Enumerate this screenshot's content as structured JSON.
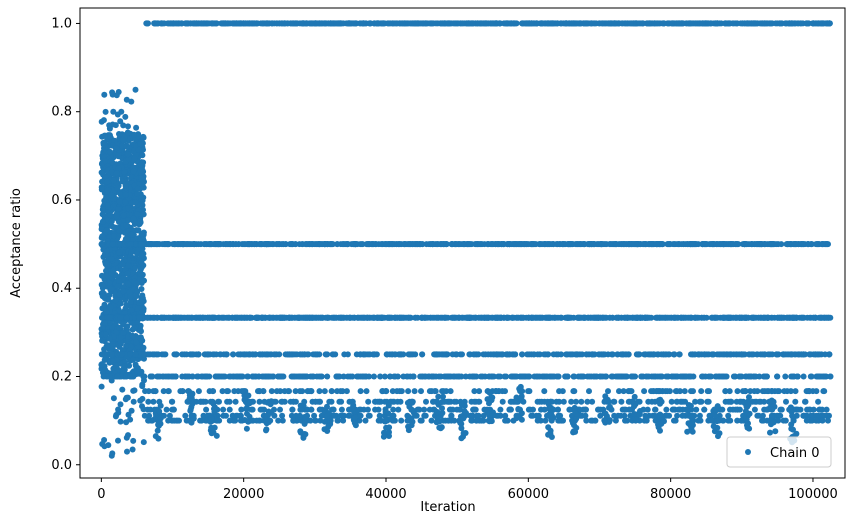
{
  "chart_data": {
    "type": "scatter",
    "xlabel": "Iteration",
    "ylabel": "Acceptance ratio",
    "xlim": [
      -3000,
      104500
    ],
    "ylim": [
      -0.03,
      1.035
    ],
    "grid": false,
    "legend": {
      "placement": "lower-right",
      "entries": [
        "Chain 0"
      ]
    },
    "x_ticks": [
      0,
      20000,
      40000,
      60000,
      80000,
      100000
    ],
    "x_tick_labels": [
      "0",
      "20000",
      "40000",
      "60000",
      "80000",
      "100000"
    ],
    "y_ticks": [
      0.0,
      0.2,
      0.4,
      0.6,
      0.8,
      1.0
    ],
    "y_tick_labels": [
      "0.0",
      "0.2",
      "0.4",
      "0.6",
      "0.8",
      "1.0"
    ],
    "series": [
      {
        "name": "Chain 0",
        "color": "#1f77b4",
        "marker": "circle",
        "description_of_structure": {
          "burn_in_range": [
            0,
            6000
          ],
          "burn_in_value_range": [
            0.02,
            0.85
          ],
          "levels": [
            {
              "y": 1.0,
              "x_range": [
                6000,
                102500
              ]
            },
            {
              "y": 0.5,
              "x_range": [
                0,
                102500
              ]
            },
            {
              "y": 0.333,
              "x_range": [
                0,
                102500
              ]
            },
            {
              "y": 0.25,
              "x_range": [
                0,
                102500
              ]
            },
            {
              "y": 0.2,
              "x_range": [
                0,
                102500
              ]
            },
            {
              "y": 0.167,
              "x_range": [
                6000,
                102500
              ]
            },
            {
              "y": 0.143,
              "x_range": [
                6000,
                102500
              ]
            },
            {
              "y": 0.125,
              "x_range": [
                6000,
                102500
              ]
            },
            {
              "y": 0.111,
              "x_range": [
                6000,
                102500
              ]
            },
            {
              "y": 0.1,
              "x_range": [
                6000,
                102500
              ]
            }
          ]
        }
      }
    ]
  }
}
